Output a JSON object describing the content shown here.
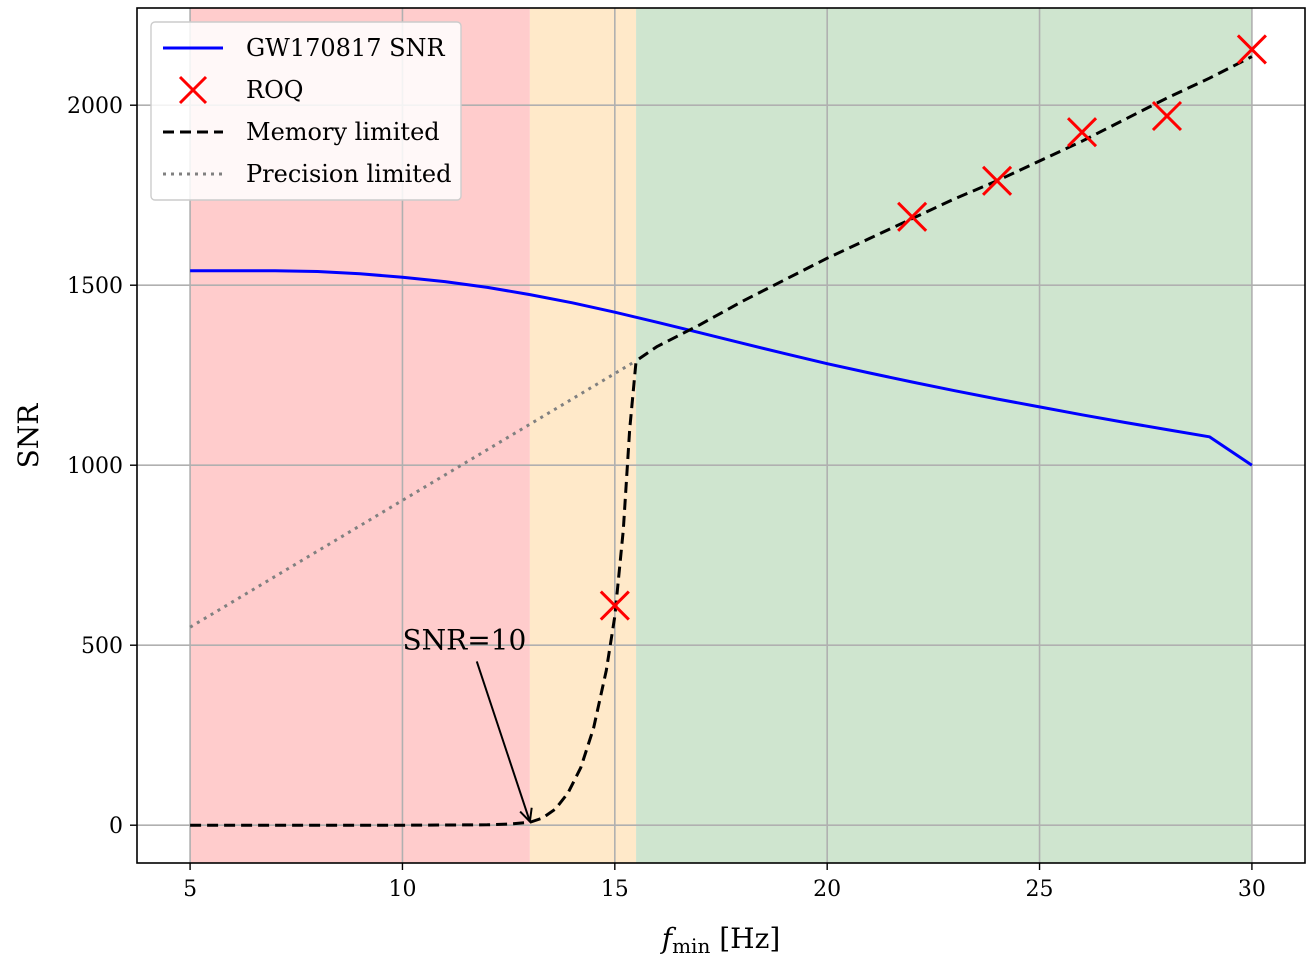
{
  "chart_data": {
    "type": "line",
    "xlabel_main": "f",
    "xlabel_sub": "min",
    "xlabel_unit": " [Hz]",
    "ylabel": "SNR",
    "xlim": [
      3.75,
      31.25
    ],
    "ylim": [
      -105,
      2270
    ],
    "xticks": [
      5,
      10,
      15,
      20,
      25,
      30
    ],
    "yticks": [
      0,
      500,
      1000,
      1500,
      2000
    ],
    "grid": true,
    "legend_position": "top-left",
    "regions": [
      {
        "x0": 5,
        "x1": 13,
        "color": "#ffcccc"
      },
      {
        "x0": 13,
        "x1": 15.5,
        "color": "#ffe9c9"
      },
      {
        "x0": 15.5,
        "x1": 30,
        "color": "#cfe5cf"
      }
    ],
    "series": [
      {
        "name": "GW170817 SNR",
        "style": "solid",
        "color": "#0000ff",
        "x": [
          5,
          6,
          7,
          8,
          9,
          10,
          11,
          12,
          13,
          14,
          15,
          16,
          17,
          18,
          19,
          20,
          21,
          22,
          23,
          24,
          25,
          26,
          27,
          28,
          29,
          30
        ],
        "y": [
          1540,
          1540,
          1540,
          1538,
          1532,
          1522,
          1510,
          1494,
          1474,
          1451,
          1425,
          1397,
          1368,
          1339,
          1310,
          1282,
          1256,
          1231,
          1207,
          1184,
          1162,
          1140,
          1119,
          1099,
          1079,
          1000
        ]
      },
      {
        "name": "ROQ",
        "style": "marker-x",
        "color": "#ff0000",
        "x": [
          15,
          22,
          24,
          26,
          28,
          30
        ],
        "y": [
          610,
          1690,
          1790,
          1925,
          1970,
          2155
        ]
      },
      {
        "name": "Memory limited",
        "style": "dashed",
        "color": "#000000",
        "x": [
          5,
          8,
          10,
          12,
          12.5,
          13,
          13.3,
          13.6,
          13.9,
          14.2,
          14.5,
          14.8,
          15.0,
          15.2,
          15.35,
          15.5,
          16,
          17,
          18,
          19,
          20,
          21,
          22,
          23,
          24,
          25,
          26,
          27,
          28,
          29,
          30
        ],
        "y": [
          0,
          0,
          0,
          1,
          3,
          8,
          20,
          45,
          90,
          160,
          270,
          430,
          580,
          820,
          1100,
          1290,
          1330,
          1390,
          1455,
          1515,
          1575,
          1630,
          1685,
          1740,
          1790,
          1845,
          1900,
          1960,
          2020,
          2075,
          2135
        ]
      },
      {
        "name": "Precision limited",
        "style": "dotted",
        "color": "#808080",
        "x": [
          5,
          15.5
        ],
        "y": [
          550,
          1290
        ]
      }
    ],
    "annotation": {
      "text": "SNR=10",
      "text_x": 10,
      "text_y": 510,
      "arrow_x": 13,
      "arrow_y": 10
    }
  }
}
